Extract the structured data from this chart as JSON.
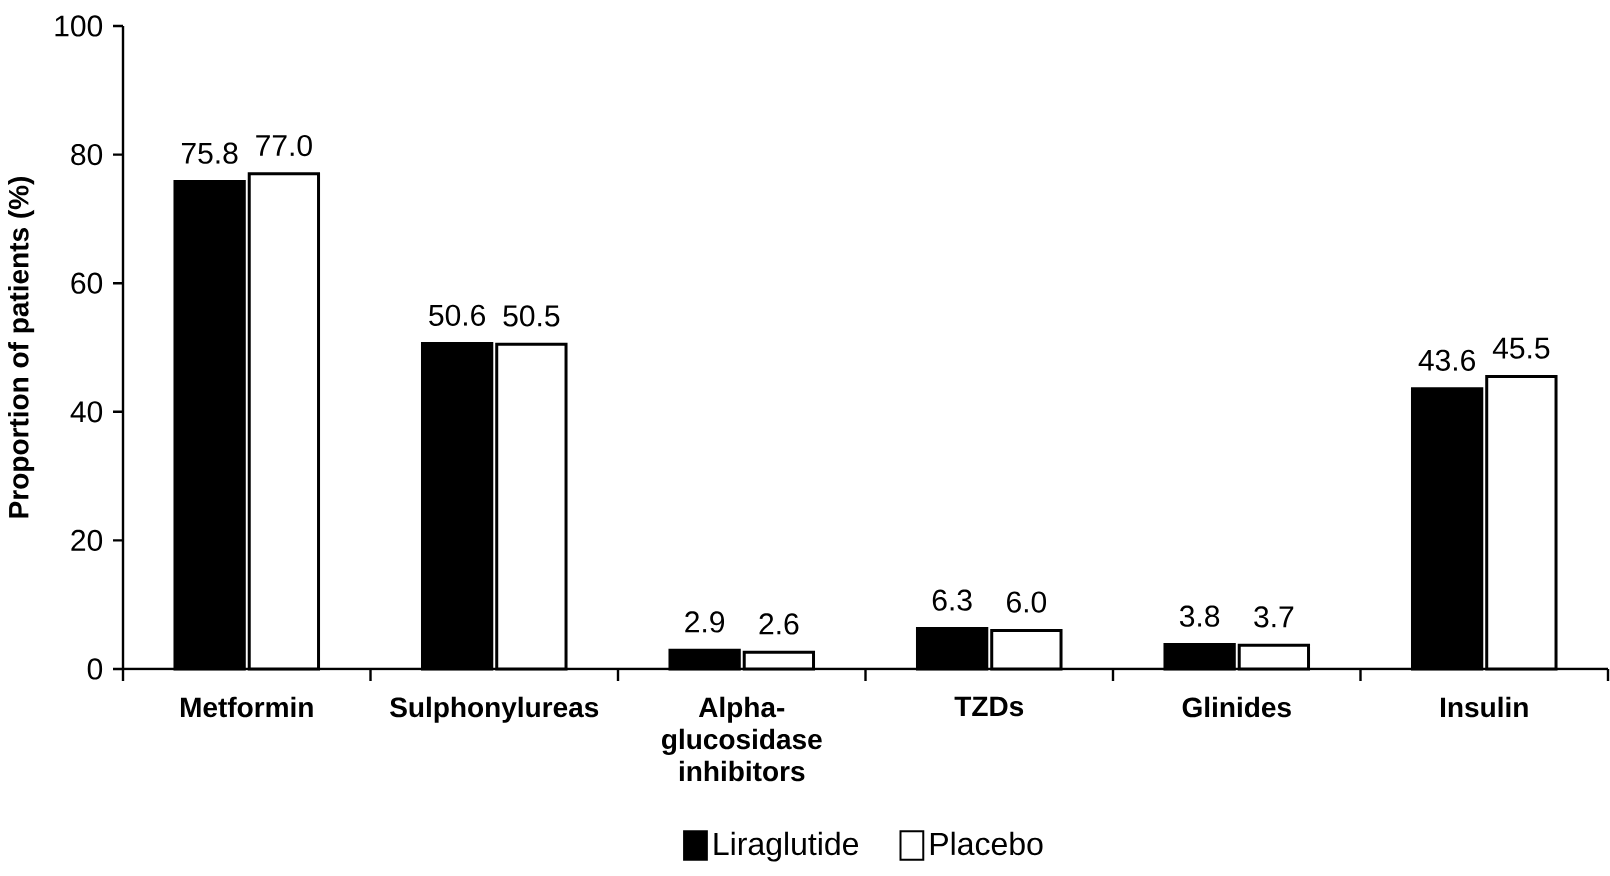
{
  "chart_data": {
    "type": "bar",
    "ylabel": "Proportion of patients (%)",
    "categories": [
      "Metformin",
      "Sulphonylureas",
      "Alpha-glucosidase inhibitors",
      "TZDs",
      "Glinides",
      "Insulin"
    ],
    "series": [
      {
        "name": "Liraglutide",
        "color": "#000000",
        "values": [
          75.8,
          50.6,
          2.9,
          6.3,
          3.8,
          43.6
        ],
        "value_labels": [
          "75.8",
          "50.6",
          "2.9",
          "6.3",
          "3.8",
          "43.6"
        ]
      },
      {
        "name": "Placebo",
        "color": "#ffffff",
        "values": [
          77.0,
          50.5,
          2.6,
          6.0,
          3.7,
          45.5
        ],
        "value_labels": [
          "77.0",
          "50.5",
          "2.6",
          "6.0",
          "3.7",
          "45.5"
        ]
      }
    ],
    "ylim": [
      0,
      100
    ],
    "yticks": [
      0,
      20,
      40,
      60,
      80,
      100
    ],
    "grid": false,
    "legend": "bottom"
  }
}
